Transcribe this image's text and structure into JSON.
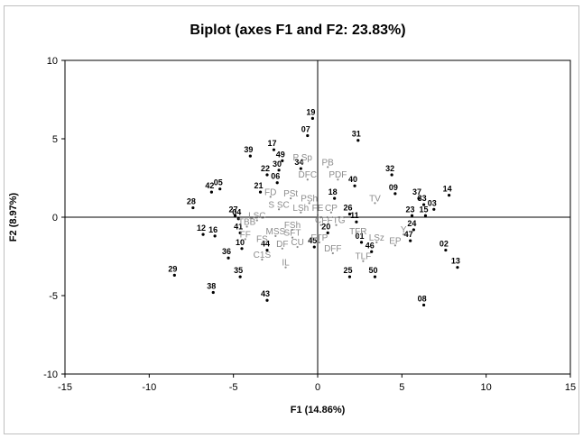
{
  "chart_data": {
    "type": "scatter",
    "title": "Biplot (axes F1 and F2: 23.83%)",
    "xlabel": "F1 (14.86%)",
    "ylabel": "F2 (8.97%)",
    "xlim": [
      -15,
      15
    ],
    "ylim": [
      -10,
      10
    ],
    "xticks": [
      -15,
      -10,
      -5,
      0,
      5,
      10,
      15
    ],
    "yticks": [
      -10,
      -5,
      0,
      5,
      10
    ],
    "grid": false,
    "series": [
      {
        "role": "observations",
        "color": "#000000",
        "points": [
          {
            "label": "19",
            "x": -0.3,
            "y": 6.3
          },
          {
            "label": "07",
            "x": -0.6,
            "y": 5.2
          },
          {
            "label": "31",
            "x": 2.4,
            "y": 4.9
          },
          {
            "label": "17",
            "x": -2.6,
            "y": 4.3
          },
          {
            "label": "39",
            "x": -4.0,
            "y": 3.9
          },
          {
            "label": "49",
            "x": -2.1,
            "y": 3.6
          },
          {
            "label": "34",
            "x": -1.0,
            "y": 3.1
          },
          {
            "label": "30",
            "x": -2.3,
            "y": 3.0
          },
          {
            "label": "22",
            "x": -3.0,
            "y": 2.7
          },
          {
            "label": "32",
            "x": 4.4,
            "y": 2.7
          },
          {
            "label": "06",
            "x": -2.4,
            "y": 2.2
          },
          {
            "label": "40",
            "x": 2.2,
            "y": 2.0
          },
          {
            "label": "21",
            "x": -3.4,
            "y": 1.6
          },
          {
            "label": "05",
            "x": -5.8,
            "y": 1.8
          },
          {
            "label": "42",
            "x": -6.3,
            "y": 1.6
          },
          {
            "label": "09",
            "x": 4.6,
            "y": 1.5
          },
          {
            "label": "14",
            "x": 7.8,
            "y": 1.4
          },
          {
            "label": "37",
            "x": 6.0,
            "y": 1.2
          },
          {
            "label": "18",
            "x": 1.0,
            "y": 1.2
          },
          {
            "label": "33",
            "x": 6.3,
            "y": 0.8
          },
          {
            "label": "03",
            "x": 6.9,
            "y": 0.5
          },
          {
            "label": "28",
            "x": -7.4,
            "y": 0.6
          },
          {
            "label": "26",
            "x": 1.9,
            "y": 0.2
          },
          {
            "label": "27",
            "x": -4.9,
            "y": 0.1
          },
          {
            "label": "04",
            "x": -4.7,
            "y": -0.1
          },
          {
            "label": "23",
            "x": 5.6,
            "y": 0.1
          },
          {
            "label": "15",
            "x": 6.4,
            "y": 0.1
          },
          {
            "label": "11",
            "x": 2.3,
            "y": -0.3
          },
          {
            "label": "24",
            "x": 5.7,
            "y": -0.8
          },
          {
            "label": "20",
            "x": 0.6,
            "y": -1.0
          },
          {
            "label": "41",
            "x": -4.6,
            "y": -1.0
          },
          {
            "label": "12",
            "x": -6.8,
            "y": -1.1
          },
          {
            "label": "16",
            "x": -6.1,
            "y": -1.2
          },
          {
            "label": "47",
            "x": 5.5,
            "y": -1.5
          },
          {
            "label": "01",
            "x": 2.6,
            "y": -1.6
          },
          {
            "label": "02",
            "x": 7.6,
            "y": -2.1
          },
          {
            "label": "10",
            "x": -4.5,
            "y": -2.0
          },
          {
            "label": "44",
            "x": -3.0,
            "y": -2.1
          },
          {
            "label": "45",
            "x": -0.2,
            "y": -1.9
          },
          {
            "label": "46",
            "x": 3.2,
            "y": -2.2
          },
          {
            "label": "36",
            "x": -5.3,
            "y": -2.6
          },
          {
            "label": "13",
            "x": 8.3,
            "y": -3.2
          },
          {
            "label": "29",
            "x": -8.5,
            "y": -3.7
          },
          {
            "label": "35",
            "x": -4.6,
            "y": -3.8
          },
          {
            "label": "25",
            "x": 1.9,
            "y": -3.8
          },
          {
            "label": "50",
            "x": 3.4,
            "y": -3.8
          },
          {
            "label": "38",
            "x": -6.2,
            "y": -4.8
          },
          {
            "label": "43",
            "x": -3.0,
            "y": -5.3
          },
          {
            "label": "08",
            "x": 6.3,
            "y": -5.6
          }
        ]
      },
      {
        "role": "variables",
        "color": "#8c8c8c",
        "points": [
          {
            "label": "P Sp",
            "x": -0.9,
            "y": 3.5
          },
          {
            "label": "PB",
            "x": 0.6,
            "y": 3.2
          },
          {
            "label": "DFC",
            "x": -0.6,
            "y": 2.4
          },
          {
            "label": "PDF",
            "x": 1.2,
            "y": 2.4
          },
          {
            "label": "FD",
            "x": -2.8,
            "y": 1.3
          },
          {
            "label": "PSt",
            "x": -1.6,
            "y": 1.2
          },
          {
            "label": "PSh",
            "x": -0.5,
            "y": 0.9
          },
          {
            "label": "TV",
            "x": 3.4,
            "y": 0.9
          },
          {
            "label": "S SC",
            "x": -2.3,
            "y": 0.5
          },
          {
            "label": "LSh",
            "x": -1.0,
            "y": 0.3
          },
          {
            "label": "FE",
            "x": 0.0,
            "y": 0.3
          },
          {
            "label": "CP",
            "x": 0.8,
            "y": 0.3
          },
          {
            "label": "LSC",
            "x": -3.6,
            "y": -0.2
          },
          {
            "label": "TBB",
            "x": -4.2,
            "y": -0.6
          },
          {
            "label": "FSh",
            "x": -1.5,
            "y": -0.8
          },
          {
            "label": "CF",
            "x": 0.2,
            "y": -0.5
          },
          {
            "label": "FTG",
            "x": 1.1,
            "y": -0.5
          },
          {
            "label": "TFR",
            "x": 2.4,
            "y": -1.2
          },
          {
            "label": "Y",
            "x": 5.1,
            "y": -1.1
          },
          {
            "label": "FF",
            "x": -4.3,
            "y": -1.4
          },
          {
            "label": "MSS",
            "x": -2.5,
            "y": -1.2
          },
          {
            "label": "SFT",
            "x": -1.5,
            "y": -1.3
          },
          {
            "label": "FTP",
            "x": 0.1,
            "y": -1.6
          },
          {
            "label": "LSz",
            "x": 3.5,
            "y": -1.6
          },
          {
            "label": "EP",
            "x": 4.6,
            "y": -1.8
          },
          {
            "label": "FS",
            "x": -3.3,
            "y": -1.7
          },
          {
            "label": "DF",
            "x": -2.1,
            "y": -2.0
          },
          {
            "label": "CU",
            "x": -1.2,
            "y": -1.9
          },
          {
            "label": "DFF",
            "x": 0.9,
            "y": -2.3
          },
          {
            "label": "C1S",
            "x": -3.3,
            "y": -2.7
          },
          {
            "label": "TLF",
            "x": 2.7,
            "y": -2.8
          },
          {
            "label": "IL",
            "x": -1.9,
            "y": -3.2
          }
        ]
      }
    ]
  }
}
